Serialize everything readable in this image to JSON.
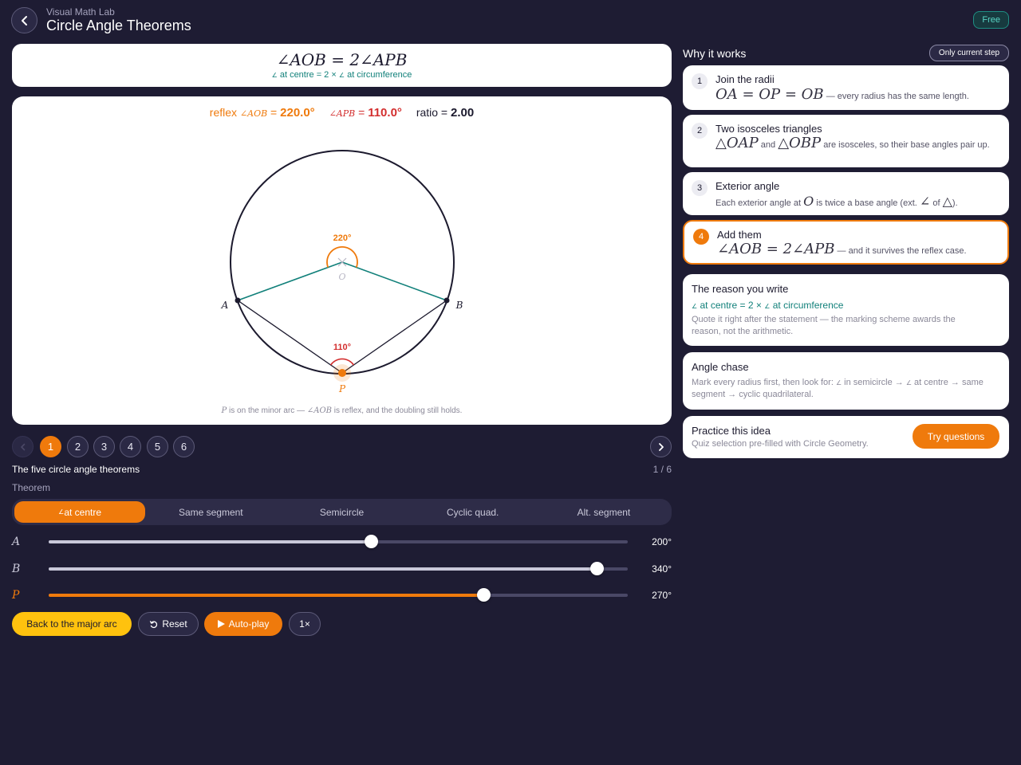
{
  "header": {
    "app_name": "Visual Math Lab",
    "title": "Circle Angle Theorems",
    "badge": "Free"
  },
  "statement": {
    "formula": "∠AOB = 2∠APB",
    "reason_mid": " at centre = 2 × ",
    "reason_end": " at circumference"
  },
  "readout": {
    "reflex_label": "reflex ",
    "reflex_angle": "AOB",
    "reflex_value": "220.0°",
    "apb_angle": "APB",
    "apb_value": "110.0°",
    "ratio_label": "ratio = ",
    "ratio_value": "2.00"
  },
  "diagram": {
    "angle_at_centre": "220°",
    "angle_at_circumference": "110°",
    "point_o": "O",
    "point_a": "A",
    "point_b": "B",
    "point_p": "P",
    "caption_p": "P",
    "caption_mid": " is on the minor arc — ",
    "caption_angle": "AOB",
    "caption_end": " is reflex, and the doubling still holds.",
    "colors": {
      "radius": "#11807a",
      "chord": "#1c1a2e",
      "centre_arc": "#ef7a0c",
      "circ_arc": "#d32f2f",
      "point_p": "#ef7a0c"
    }
  },
  "steps": {
    "items": [
      "1",
      "2",
      "3",
      "4",
      "5",
      "6"
    ],
    "active": 1,
    "title": "The five circle angle theorems",
    "counter": "1 / 6"
  },
  "theorem": {
    "label": "Theorem",
    "tabs": [
      " at centre",
      "Same segment",
      "Semicircle",
      "Cyclic quad.",
      "Alt. segment"
    ]
  },
  "sliders": [
    {
      "label": "A",
      "value": "200°",
      "position": 0.557
    },
    {
      "label": "B",
      "value": "340°",
      "position": 0.946
    },
    {
      "label": "P",
      "value": "270°",
      "position": 0.75
    }
  ],
  "buttons": {
    "major_arc": "Back to the major arc",
    "reset": "Reset",
    "autoplay": "Auto-play",
    "speed": "1×"
  },
  "why": {
    "title": "Why it works",
    "filter": "Only current step",
    "steps": [
      {
        "num": "1",
        "title": "Join the radii",
        "math": "OA = OP = OB",
        "text": " — every radius has the same length."
      },
      {
        "num": "2",
        "title": "Two isosceles triangles",
        "math1": "△OAP",
        "and": " and ",
        "math2": "△OBP",
        "text": " are isosceles, so their base angles pair up."
      },
      {
        "num": "3",
        "title": "Exterior angle",
        "text1": "Each exterior angle at ",
        "math": "O",
        "text2": " is twice a base angle (ext. ",
        "sym1": "∠",
        "text3": " of ",
        "sym2": "△",
        "text4": ")."
      },
      {
        "num": "4",
        "title": "Add them",
        "math": "∠AOB = 2∠APB",
        "text": " — and it survives the reflex case."
      }
    ]
  },
  "reason_card": {
    "title": "The reason you write",
    "reason_mid": " at centre = 2 × ",
    "reason_end": " at circumference",
    "body": "Quote it right after the statement — the marking scheme awards the reason, not the arithmetic."
  },
  "angle_chase": {
    "title": "Angle chase",
    "t1": "Mark every radius first, then look for: ",
    "t2": " in semicircle → ",
    "t3": " at centre → same segment → cyclic quadrilateral."
  },
  "practice": {
    "title": "Practice this idea",
    "body": "Quiz selection pre-filled with Circle Geometry.",
    "button": "Try questions"
  }
}
